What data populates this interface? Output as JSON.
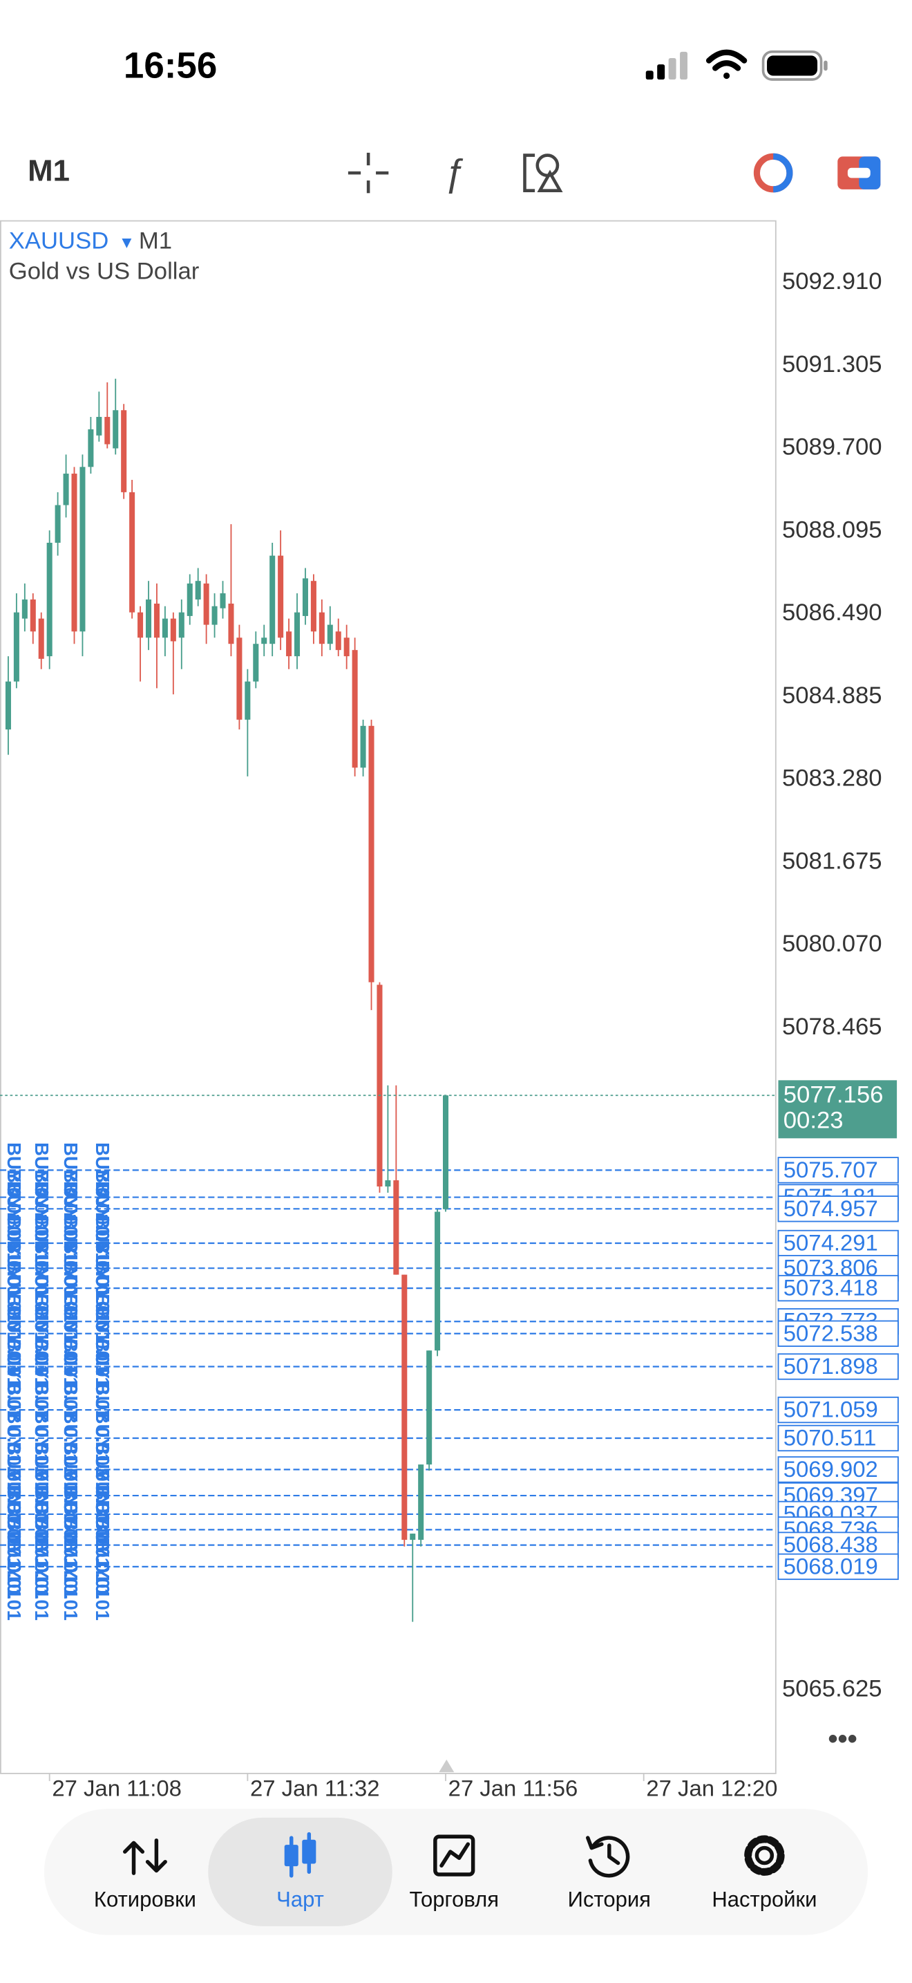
{
  "status_bar": {
    "time": "16:56"
  },
  "toolbar": {
    "timeframe": "M1"
  },
  "chart_data": {
    "type": "candlestick",
    "symbol": "XAUUSD",
    "timeframe": "M1",
    "subtitle": "Gold vs US Dollar",
    "x": [
      "27 Jan 11:03",
      "27 Jan 11:04",
      "27 Jan 11:05",
      "27 Jan 11:06",
      "27 Jan 11:07",
      "27 Jan 11:08",
      "27 Jan 11:09",
      "27 Jan 11:10",
      "27 Jan 11:11",
      "27 Jan 11:12",
      "27 Jan 11:13",
      "27 Jan 11:14",
      "27 Jan 11:15",
      "27 Jan 11:16",
      "27 Jan 11:17",
      "27 Jan 11:18",
      "27 Jan 11:19",
      "27 Jan 11:20",
      "27 Jan 11:21",
      "27 Jan 11:22",
      "27 Jan 11:23",
      "27 Jan 11:24",
      "27 Jan 11:25",
      "27 Jan 11:26",
      "27 Jan 11:27",
      "27 Jan 11:28",
      "27 Jan 11:29",
      "27 Jan 11:30",
      "27 Jan 11:31",
      "27 Jan 11:32",
      "27 Jan 11:33",
      "27 Jan 11:34",
      "27 Jan 11:35",
      "27 Jan 11:36",
      "27 Jan 11:37",
      "27 Jan 11:38",
      "27 Jan 11:39",
      "27 Jan 11:40",
      "27 Jan 11:41",
      "27 Jan 11:42",
      "27 Jan 11:43",
      "27 Jan 11:44",
      "27 Jan 11:45",
      "27 Jan 11:46",
      "27 Jan 11:47",
      "27 Jan 11:48",
      "27 Jan 11:49",
      "27 Jan 11:50",
      "27 Jan 11:51",
      "27 Jan 11:52",
      "27 Jan 11:53",
      "27 Jan 11:54",
      "27 Jan 11:55",
      "27 Jan 11:56"
    ],
    "open": [
      5084.25,
      5085.18,
      5086.4,
      5086.77,
      5086.4,
      5085.67,
      5087.87,
      5088.6,
      5089.21,
      5086.15,
      5089.34,
      5089.95,
      5090.31,
      5089.7,
      5090.44,
      5088.85,
      5086.52,
      5086.03,
      5086.69,
      5086.03,
      5086.4,
      5086.03,
      5086.45,
      5086.77,
      5087.08,
      5086.28,
      5086.6,
      5086.69,
      5086.03,
      5084.44,
      5085.18,
      5085.91,
      5085.91,
      5087.62,
      5086.15,
      5085.67,
      5086.45,
      5087.13,
      5086.52,
      5085.91,
      5086.15,
      5086.03,
      5085.79,
      5083.51,
      5084.32,
      5079.3,
      5075.39,
      5075.51,
      5073.68,
      5068.54,
      5068.54,
      5070.0,
      5072.21,
      5074.95
    ],
    "high": [
      5085.67,
      5086.89,
      5087.08,
      5086.89,
      5086.52,
      5088.11,
      5088.85,
      5089.58,
      5089.34,
      5089.58,
      5090.31,
      5090.8,
      5090.98,
      5091.05,
      5090.56,
      5089.09,
      5086.64,
      5087.13,
      5087.08,
      5086.64,
      5086.52,
      5086.77,
      5087.26,
      5087.38,
      5087.26,
      5086.89,
      5087.13,
      5088.23,
      5086.28,
      5085.42,
      5086.15,
      5086.28,
      5087.87,
      5088.11,
      5086.4,
      5086.89,
      5087.38,
      5087.26,
      5086.77,
      5086.64,
      5086.4,
      5086.28,
      5086.03,
      5084.44,
      5084.44,
      5079.35,
      5077.35,
      5077.35,
      5073.68,
      5068.66,
      5070.0,
      5072.21,
      5074.95,
      5077.156
    ],
    "low": [
      5083.76,
      5085.05,
      5086.15,
      5085.91,
      5085.42,
      5085.42,
      5087.62,
      5088.36,
      5085.91,
      5085.67,
      5089.21,
      5089.83,
      5089.7,
      5089.58,
      5088.72,
      5086.4,
      5085.18,
      5085.79,
      5085.05,
      5085.67,
      5084.93,
      5085.42,
      5086.28,
      5086.64,
      5085.91,
      5086.03,
      5086.4,
      5085.67,
      5084.25,
      5083.34,
      5085.05,
      5085.67,
      5085.67,
      5085.79,
      5085.42,
      5085.42,
      5086.28,
      5085.91,
      5085.67,
      5085.79,
      5085.67,
      5085.42,
      5083.34,
      5083.34,
      5078.81,
      5075.27,
      5075.27,
      5073.68,
      5068.41,
      5066.95,
      5068.41,
      5069.88,
      5072.1,
      5074.9
    ],
    "close": [
      5085.18,
      5086.52,
      5086.77,
      5086.15,
      5085.62,
      5087.87,
      5088.6,
      5089.21,
      5086.15,
      5089.34,
      5090.07,
      5090.31,
      5089.78,
      5090.44,
      5088.85,
      5086.52,
      5086.03,
      5086.77,
      5086.03,
      5086.4,
      5085.96,
      5086.52,
      5087.08,
      5087.13,
      5086.28,
      5086.64,
      5086.89,
      5085.91,
      5084.44,
      5085.18,
      5085.91,
      5086.03,
      5087.62,
      5086.03,
      5085.67,
      5086.52,
      5087.18,
      5086.15,
      5085.91,
      5086.28,
      5085.79,
      5085.67,
      5083.51,
      5084.32,
      5079.35,
      5075.39,
      5075.51,
      5073.68,
      5068.54,
      5068.66,
      5070.0,
      5072.21,
      5074.9,
      5077.156
    ],
    "up_color": "#479e8c",
    "down_color": "#dd5a4e",
    "xlim": [
      "27 Jan 11:02",
      "27 Jan 12:36"
    ],
    "xticks": [
      "27 Jan 11:08",
      "27 Jan 11:32",
      "27 Jan 11:56",
      "27 Jan 12:20"
    ],
    "ylim": [
      5064.01,
      5094.11
    ],
    "yticks": [
      {
        "value": 5092.91,
        "label": "5092.910"
      },
      5091.305,
      {
        "value": 5089.7,
        "label": "5089.700"
      },
      5088.095,
      {
        "value": 5086.49,
        "label": "5086.490"
      },
      5084.885,
      {
        "value": 5083.28,
        "label": "5083.280"
      },
      5081.675,
      {
        "value": 5080.07,
        "label": "5080.070"
      },
      5078.465,
      5065.625
    ],
    "current_price": 5077.156,
    "timer": "00:23",
    "current_color": "#4e9e8e",
    "order_lines": {
      "label": "BUY 0.01",
      "color": "#2e7be6",
      "prices": [
        5075.707,
        5075.181,
        5074.957,
        5074.291,
        5073.806,
        5073.418,
        5072.773,
        5072.538,
        5071.898,
        5071.059,
        5070.511,
        5069.902,
        5069.397,
        5069.037,
        5068.736,
        5068.438,
        5068.019
      ]
    }
  },
  "tab_bar": {
    "tabs": [
      "Котировки",
      "Чарт",
      "Торговля",
      "История",
      "Настройки"
    ],
    "active": 1
  }
}
